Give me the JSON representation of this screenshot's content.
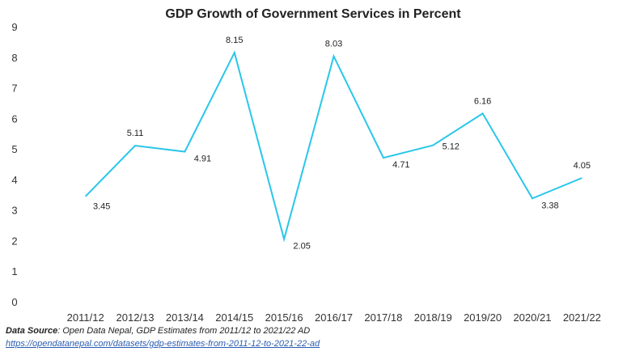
{
  "chart_data": {
    "type": "line",
    "title": "GDP Growth of Government Services in Percent",
    "categories": [
      "2011/12",
      "2012/13",
      "2013/14",
      "2014/15",
      "2015/16",
      "2016/17",
      "2017/18",
      "2018/19",
      "2019/20",
      "2020/21",
      "2021/22"
    ],
    "series": [
      {
        "values": [
          3.45,
          5.11,
          4.91,
          8.15,
          2.05,
          8.03,
          4.71,
          5.12,
          6.16,
          3.38,
          4.05
        ],
        "color": "#29c6ea"
      }
    ],
    "data_labels": [
      "3.45",
      "5.11",
      "4.91",
      "8.15",
      "2.05",
      "8.03",
      "4.71",
      "5.12",
      "6.16",
      "3.38",
      "4.05"
    ],
    "yticks": [
      "0",
      "1",
      "2",
      "3",
      "4",
      "5",
      "6",
      "7",
      "8",
      "9"
    ],
    "ylim": [
      0,
      9
    ],
    "grid": false
  },
  "source": {
    "label": "Data Source",
    "text": ": Open Data Nepal,  GDP Estimates from 2011/12 to 2021/22 AD",
    "link": "https://opendatanepal.com/datasets/gdp-estimates-from-2011-12-to-2021-22-ad"
  }
}
